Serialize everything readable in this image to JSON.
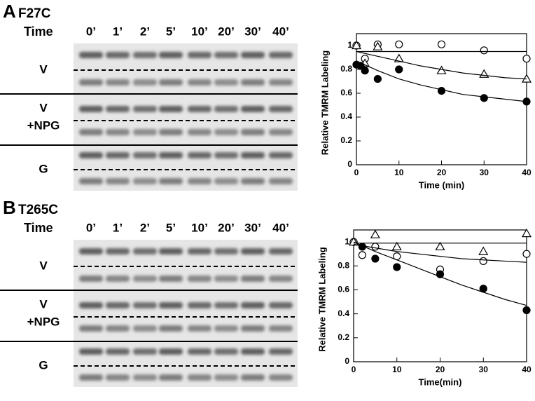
{
  "panels": [
    {
      "letter": "A",
      "label": "F27C",
      "time_label": "Time",
      "times": [
        "0’",
        "1’",
        "2’",
        "5’",
        "10’",
        "20’",
        "30’",
        "40’"
      ],
      "rows": [
        [
          "V"
        ],
        [
          "V",
          "+NPG"
        ],
        [
          "G"
        ]
      ]
    },
    {
      "letter": "B",
      "label": "T265C",
      "time_label": "Time",
      "times": [
        "0’",
        "1’",
        "2’",
        "5’",
        "10’",
        "20’",
        "30’",
        "40’"
      ],
      "rows": [
        [
          "V"
        ],
        [
          "V",
          "+NPG"
        ],
        [
          "G"
        ]
      ]
    }
  ],
  "chart_data": [
    {
      "type": "scatter",
      "x_label": "Time (min)",
      "y_label": "Relative TMRM Labeling",
      "xlim": [
        0,
        40
      ],
      "xticks": [
        0,
        10,
        20,
        30,
        40
      ],
      "ylim": [
        0,
        1.1
      ],
      "yticks": [
        0,
        0.2,
        0.4,
        0.6,
        0.8,
        1
      ],
      "series": [
        {
          "marker": "circle-open",
          "color": "#000000",
          "x": [
            0,
            2,
            5,
            10,
            20,
            30,
            40
          ],
          "values": [
            1.0,
            0.89,
            1.01,
            1.01,
            1.01,
            0.96,
            0.89
          ]
        },
        {
          "marker": "triangle-open",
          "color": "#000000",
          "x": [
            0,
            2,
            5,
            10,
            20,
            30,
            40
          ],
          "values": [
            1.0,
            0.85,
            0.99,
            0.89,
            0.79,
            0.76,
            0.72
          ]
        },
        {
          "marker": "circle-filled",
          "color": "#000000",
          "x": [
            0,
            1,
            2,
            5,
            10,
            20,
            30,
            40
          ],
          "values": [
            0.84,
            0.83,
            0.79,
            0.72,
            0.8,
            0.62,
            0.56,
            0.53
          ]
        },
        {
          "marker": "none",
          "color": "#000000",
          "x": [
            0,
            40
          ],
          "values": [
            0.95,
            0.95
          ]
        },
        {
          "marker": "none",
          "color": "#000000",
          "x": [
            0,
            5,
            10,
            15,
            20,
            25,
            30,
            35,
            40
          ],
          "values": [
            0.95,
            0.91,
            0.87,
            0.83,
            0.8,
            0.77,
            0.75,
            0.73,
            0.72
          ]
        },
        {
          "marker": "none",
          "color": "#000000",
          "x": [
            0,
            5,
            10,
            15,
            20,
            25,
            30,
            35,
            40
          ],
          "values": [
            0.87,
            0.79,
            0.72,
            0.67,
            0.63,
            0.59,
            0.57,
            0.55,
            0.53
          ]
        }
      ]
    },
    {
      "type": "scatter",
      "x_label": "Time(min)",
      "y_label": "Relative TMRM Labeling",
      "xlim": [
        0,
        40
      ],
      "xticks": [
        0,
        10,
        20,
        30,
        40
      ],
      "ylim": [
        0,
        1.1
      ],
      "yticks": [
        0,
        0.2,
        0.4,
        0.6,
        0.8,
        1
      ],
      "series": [
        {
          "marker": "circle-open",
          "color": "#000000",
          "x": [
            0,
            2,
            5,
            10,
            20,
            30,
            40
          ],
          "values": [
            1.0,
            0.89,
            0.96,
            0.88,
            0.77,
            0.84,
            0.9
          ]
        },
        {
          "marker": "triangle-open",
          "color": "#000000",
          "x": [
            0,
            5,
            10,
            20,
            30,
            40
          ],
          "values": [
            1.0,
            1.06,
            0.96,
            0.96,
            0.92,
            1.07
          ]
        },
        {
          "marker": "circle-filled",
          "color": "#000000",
          "x": [
            2,
            5,
            10,
            20,
            30,
            40
          ],
          "values": [
            0.96,
            0.86,
            0.79,
            0.73,
            0.61,
            0.43
          ]
        },
        {
          "marker": "none",
          "color": "#000000",
          "x": [
            0,
            40
          ],
          "values": [
            0.99,
            0.99
          ]
        },
        {
          "marker": "none",
          "color": "#000000",
          "x": [
            0,
            5,
            10,
            15,
            20,
            25,
            30,
            35,
            40
          ],
          "values": [
            0.98,
            0.95,
            0.92,
            0.9,
            0.88,
            0.86,
            0.85,
            0.84,
            0.83
          ]
        },
        {
          "marker": "none",
          "color": "#000000",
          "x": [
            0,
            5,
            10,
            15,
            20,
            25,
            30,
            35,
            40
          ],
          "values": [
            1.0,
            0.92,
            0.85,
            0.78,
            0.71,
            0.64,
            0.58,
            0.52,
            0.47
          ]
        }
      ]
    }
  ]
}
